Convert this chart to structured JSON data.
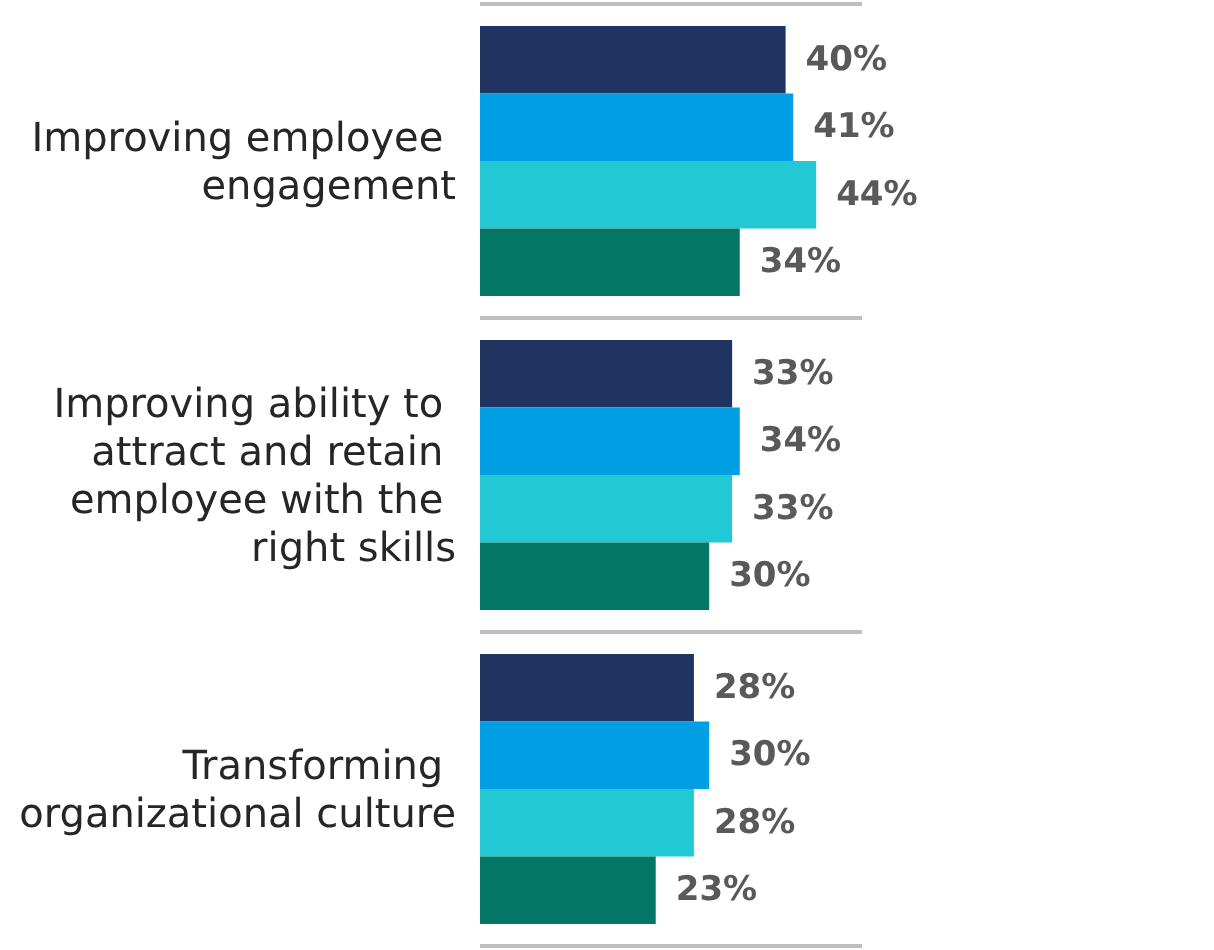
{
  "chart_data": {
    "type": "bar",
    "orientation": "horizontal",
    "categories": [
      "Improving employee engagement",
      "Improving ability to attract and retain employee with the right skills",
      "Transforming organizational culture"
    ],
    "series": [
      {
        "color": "#1f3460",
        "values": [
          40,
          33,
          28
        ],
        "value_labels": [
          "40%",
          "33%",
          "28%"
        ]
      },
      {
        "color": "#009fe3",
        "values": [
          41,
          34,
          30
        ],
        "value_labels": [
          "41%",
          "34%",
          "30%"
        ]
      },
      {
        "color": "#22c9d4",
        "values": [
          44,
          33,
          28
        ],
        "value_labels": [
          "44%",
          "33%",
          "28%"
        ]
      },
      {
        "color": "#037665",
        "values": [
          34,
          30,
          23
        ],
        "value_labels": [
          "34%",
          "30%",
          "23%"
        ]
      }
    ],
    "grid": "y"
  }
}
